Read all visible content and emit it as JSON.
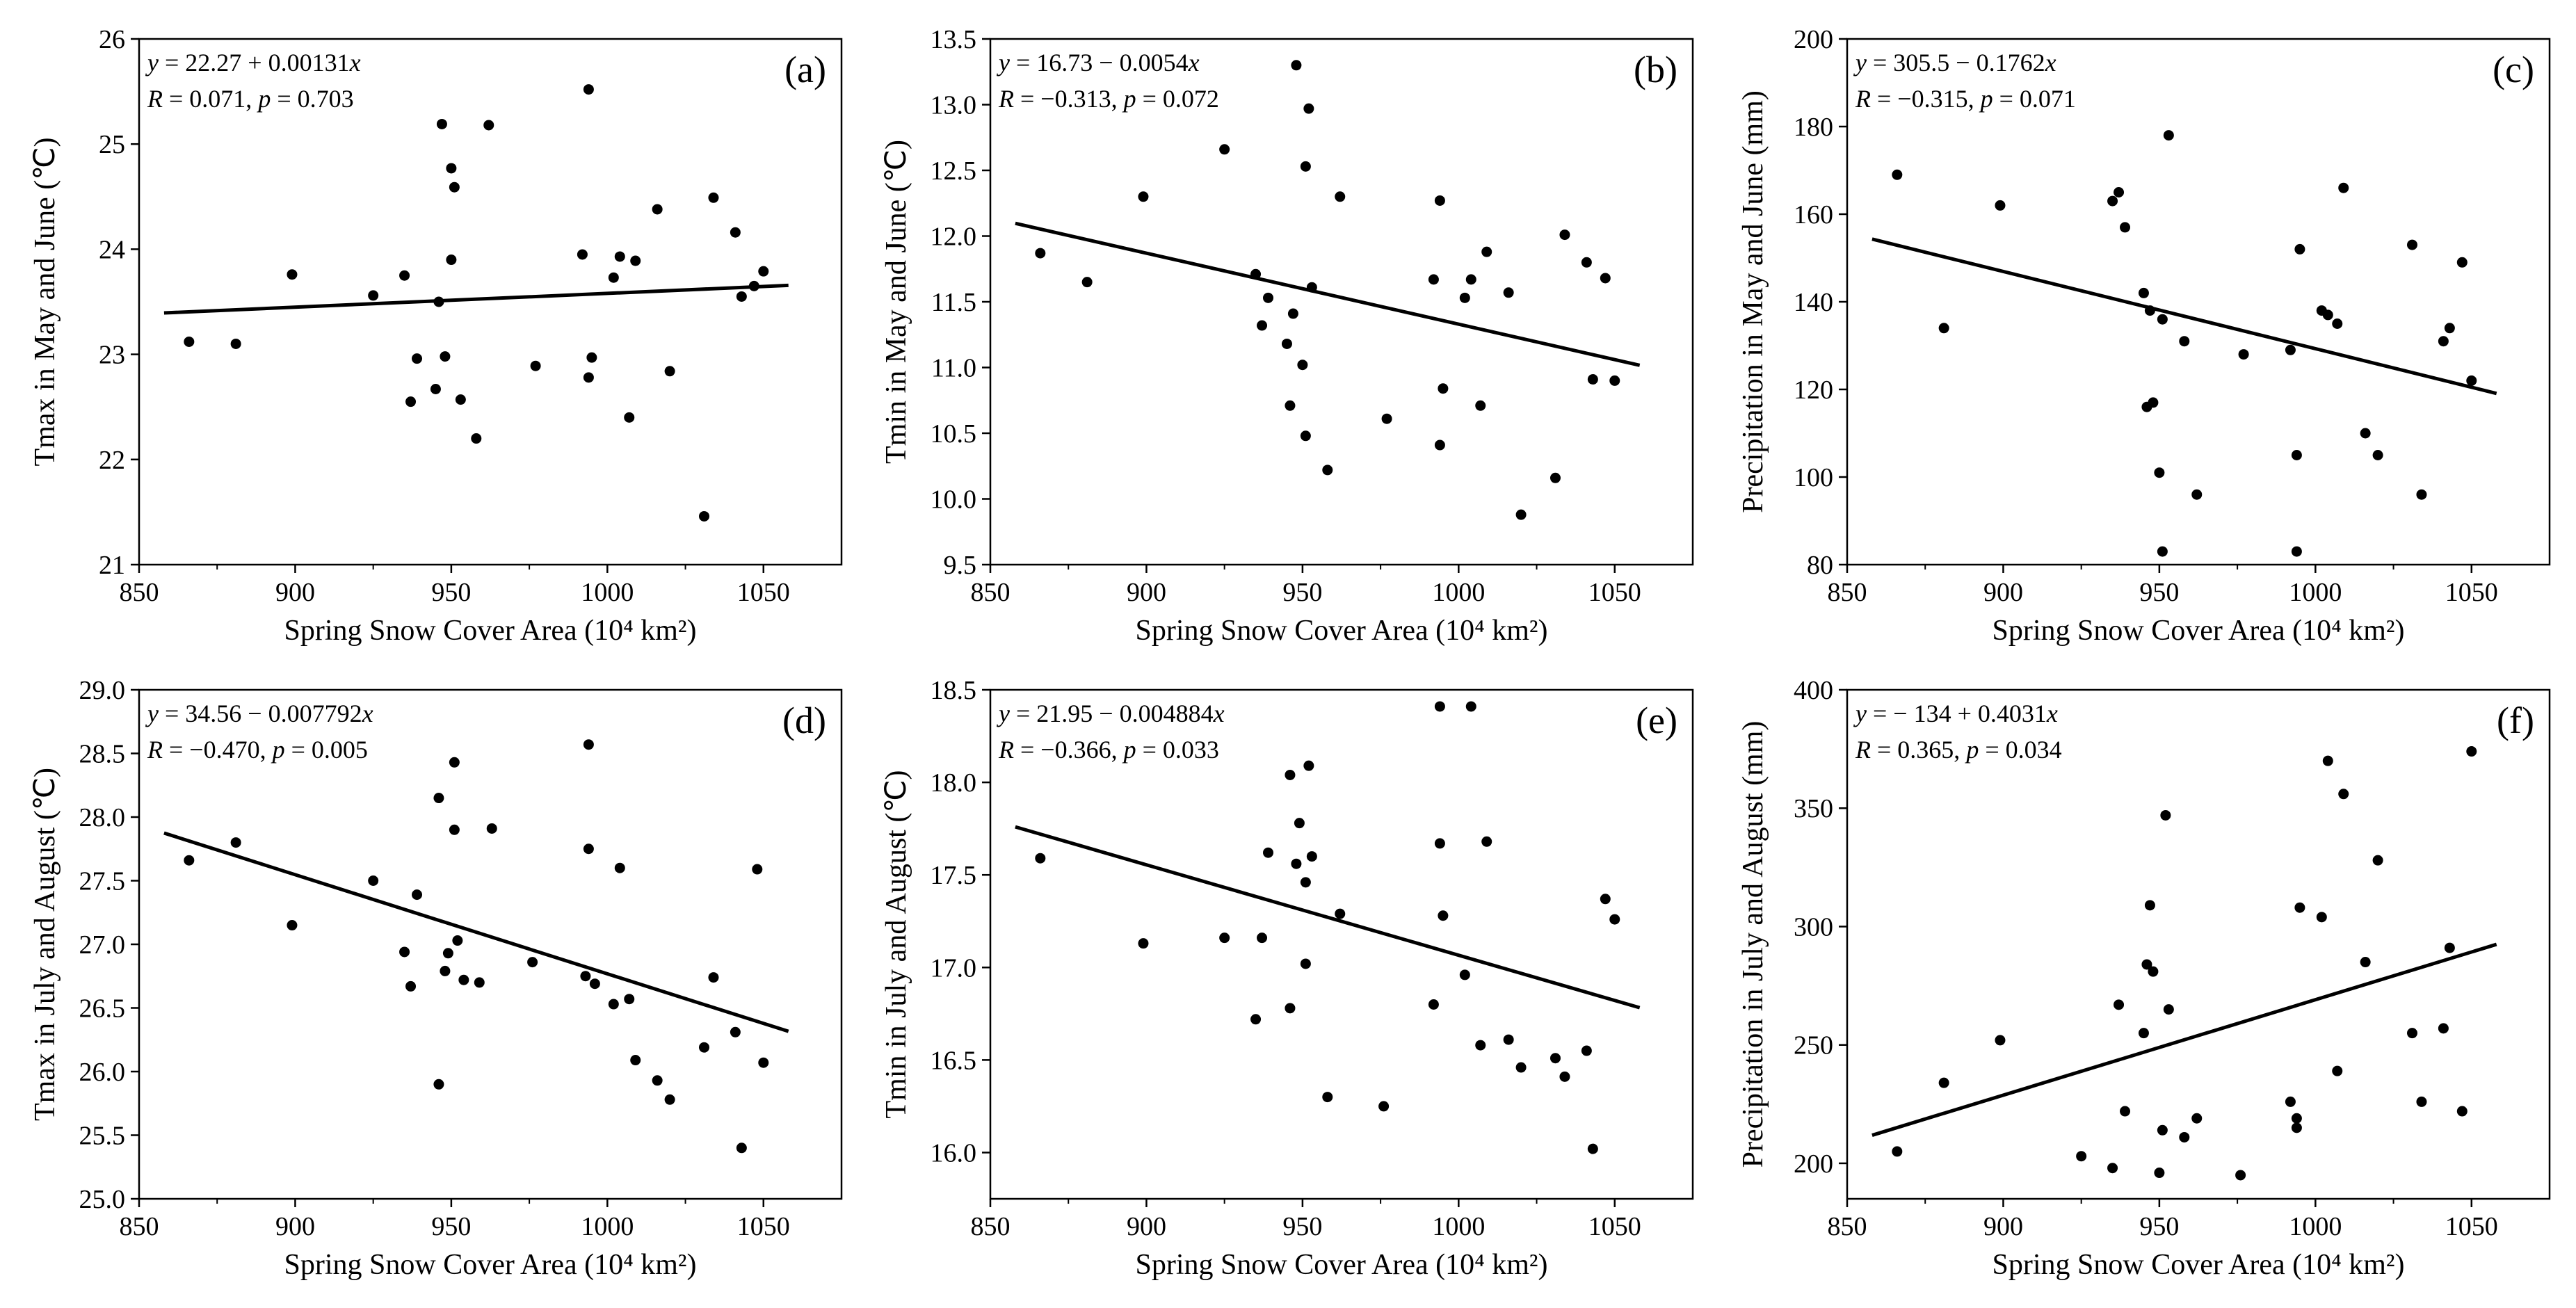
{
  "figure": {
    "colors": {
      "axis": "#000000",
      "point": "#000000",
      "line": "#000000",
      "background": "#ffffff"
    }
  },
  "chart_data": [
    {
      "type": "scatter",
      "panel_label": "(a)",
      "ylabel": "Tmax in May and June (℃)",
      "xlabel": "Spring Snow Cover Area (10⁴ km²)",
      "xlim": [
        850,
        1075
      ],
      "ylim": [
        21,
        26
      ],
      "xticks": [
        850,
        900,
        950,
        1000,
        1050
      ],
      "yticks": [
        21,
        22,
        23,
        24,
        25,
        26
      ],
      "ytick_labels": [
        "21",
        "22",
        "23",
        "24",
        "25",
        "26"
      ],
      "equation": "y = 22.27 + 0.00131x",
      "stats": "R = 0.071, p = 0.703",
      "fit": {
        "intercept": 22.27,
        "slope": 0.00131,
        "x_range": [
          858,
          1058
        ]
      },
      "points": [
        [
          866,
          23.12
        ],
        [
          881,
          23.1
        ],
        [
          899,
          23.76
        ],
        [
          925,
          23.56
        ],
        [
          935,
          23.75
        ],
        [
          937,
          22.55
        ],
        [
          939,
          22.96
        ],
        [
          945,
          22.67
        ],
        [
          946,
          23.5
        ],
        [
          947,
          25.19
        ],
        [
          948,
          22.98
        ],
        [
          950,
          24.77
        ],
        [
          950,
          23.9
        ],
        [
          951,
          24.59
        ],
        [
          953,
          22.57
        ],
        [
          958,
          22.2
        ],
        [
          962,
          25.18
        ],
        [
          977,
          22.89
        ],
        [
          992,
          23.95
        ],
        [
          994,
          25.52
        ],
        [
          994,
          22.78
        ],
        [
          995,
          22.97
        ],
        [
          1002,
          23.73
        ],
        [
          1004,
          23.93
        ],
        [
          1007,
          22.4
        ],
        [
          1009,
          23.89
        ],
        [
          1016,
          24.38
        ],
        [
          1020,
          22.84
        ],
        [
          1031,
          21.46
        ],
        [
          1034,
          24.49
        ],
        [
          1041,
          24.16
        ],
        [
          1043,
          23.55
        ],
        [
          1047,
          23.65
        ],
        [
          1050,
          23.79
        ]
      ]
    },
    {
      "type": "scatter",
      "panel_label": "(b)",
      "ylabel": "Tmin in May and June (℃)",
      "xlabel": "Spring Snow Cover Area (10⁴ km²)",
      "xlim": [
        850,
        1075
      ],
      "ylim": [
        9.5,
        13.5
      ],
      "xticks": [
        850,
        900,
        950,
        1000,
        1050
      ],
      "yticks": [
        9.5,
        10,
        10.5,
        11,
        11.5,
        12,
        12.5,
        13,
        13.5
      ],
      "ytick_labels": [
        "9.5",
        "10.0",
        "10.5",
        "11.0",
        "11.5",
        "12.0",
        "12.5",
        "13.0",
        "13.5"
      ],
      "equation": "y = 16.73 − 0.0054x",
      "stats": "R = −0.313, p = 0.072",
      "fit": {
        "intercept": 16.73,
        "slope": -0.0054,
        "x_range": [
          858,
          1058
        ]
      },
      "points": [
        [
          866,
          11.87
        ],
        [
          881,
          11.65
        ],
        [
          899,
          12.3
        ],
        [
          925,
          12.66
        ],
        [
          935,
          11.71
        ],
        [
          937,
          11.32
        ],
        [
          939,
          11.53
        ],
        [
          945,
          11.18
        ],
        [
          946,
          10.71
        ],
        [
          947,
          11.41
        ],
        [
          948,
          13.3
        ],
        [
          950,
          11.02
        ],
        [
          951,
          12.53
        ],
        [
          951,
          10.48
        ],
        [
          952,
          12.97
        ],
        [
          953,
          11.61
        ],
        [
          958,
          10.22
        ],
        [
          962,
          12.3
        ],
        [
          977,
          10.61
        ],
        [
          992,
          11.67
        ],
        [
          994,
          12.27
        ],
        [
          994,
          10.41
        ],
        [
          995,
          10.84
        ],
        [
          1002,
          11.53
        ],
        [
          1004,
          11.67
        ],
        [
          1007,
          10.71
        ],
        [
          1009,
          11.88
        ],
        [
          1016,
          11.57
        ],
        [
          1020,
          9.88
        ],
        [
          1031,
          10.16
        ],
        [
          1034,
          12.01
        ],
        [
          1041,
          11.8
        ],
        [
          1043,
          10.91
        ],
        [
          1047,
          11.68
        ],
        [
          1050,
          10.9
        ]
      ]
    },
    {
      "type": "scatter",
      "panel_label": "(c)",
      "ylabel": "Precipitation in May and June (mm)",
      "xlabel": "Spring Snow Cover Area (10⁴ km²)",
      "xlim": [
        850,
        1075
      ],
      "ylim": [
        80,
        200
      ],
      "xticks": [
        850,
        900,
        950,
        1000,
        1050
      ],
      "yticks": [
        80,
        100,
        120,
        140,
        160,
        180,
        200
      ],
      "ytick_labels": [
        "80",
        "100",
        "120",
        "140",
        "160",
        "180",
        "200"
      ],
      "equation": "y = 305.5 − 0.1762x",
      "stats": "R = −0.315, p = 0.071",
      "fit": {
        "intercept": 305.5,
        "slope": -0.1762,
        "x_range": [
          858,
          1058
        ]
      },
      "points": [
        [
          866,
          169
        ],
        [
          881,
          134
        ],
        [
          899,
          162
        ],
        [
          935,
          163
        ],
        [
          937,
          165
        ],
        [
          939,
          157
        ],
        [
          945,
          142
        ],
        [
          946,
          116
        ],
        [
          947,
          138
        ],
        [
          948,
          117
        ],
        [
          950,
          101
        ],
        [
          951,
          83
        ],
        [
          951,
          136
        ],
        [
          953,
          178
        ],
        [
          958,
          131
        ],
        [
          962,
          96
        ],
        [
          977,
          128
        ],
        [
          992,
          129
        ],
        [
          994,
          105
        ],
        [
          994,
          83
        ],
        [
          995,
          152
        ],
        [
          1002,
          138
        ],
        [
          1004,
          137
        ],
        [
          1007,
          135
        ],
        [
          1009,
          166
        ],
        [
          1016,
          110
        ],
        [
          1020,
          105
        ],
        [
          1031,
          153
        ],
        [
          1034,
          96
        ],
        [
          1041,
          131
        ],
        [
          1043,
          134
        ],
        [
          1047,
          149
        ],
        [
          1050,
          122
        ]
      ]
    },
    {
      "type": "scatter",
      "panel_label": "(d)",
      "ylabel": "Tmax in July and August (℃)",
      "xlabel": "Spring Snow Cover Area (10⁴ km²)",
      "xlim": [
        850,
        1075
      ],
      "ylim": [
        25,
        29
      ],
      "xticks": [
        850,
        900,
        950,
        1000,
        1050
      ],
      "yticks": [
        25,
        25.5,
        26,
        26.5,
        27,
        27.5,
        28,
        28.5,
        29
      ],
      "ytick_labels": [
        "25.0",
        "25.5",
        "26.0",
        "26.5",
        "27.0",
        "27.5",
        "28.0",
        "28.5",
        "29.0"
      ],
      "equation": "y = 34.56 − 0.007792x",
      "stats": "R = −0.470, p = 0.005",
      "fit": {
        "intercept": 34.56,
        "slope": -0.007792,
        "x_range": [
          858,
          1058
        ]
      },
      "points": [
        [
          866,
          27.66
        ],
        [
          881,
          27.8
        ],
        [
          899,
          27.15
        ],
        [
          925,
          27.5
        ],
        [
          935,
          26.94
        ],
        [
          937,
          26.67
        ],
        [
          939,
          27.39
        ],
        [
          946,
          28.15
        ],
        [
          946,
          25.9
        ],
        [
          948,
          26.79
        ],
        [
          949,
          26.93
        ],
        [
          951,
          28.43
        ],
        [
          951,
          27.9
        ],
        [
          952,
          27.03
        ],
        [
          954,
          26.72
        ],
        [
          959,
          26.7
        ],
        [
          963,
          27.91
        ],
        [
          976,
          26.86
        ],
        [
          993,
          26.75
        ],
        [
          994,
          28.57
        ],
        [
          994,
          27.75
        ],
        [
          996,
          26.69
        ],
        [
          1002,
          26.53
        ],
        [
          1004,
          27.6
        ],
        [
          1007,
          26.57
        ],
        [
          1009,
          26.09
        ],
        [
          1016,
          25.93
        ],
        [
          1020,
          25.78
        ],
        [
          1031,
          26.19
        ],
        [
          1034,
          26.74
        ],
        [
          1041,
          26.31
        ],
        [
          1043,
          25.4
        ],
        [
          1048,
          27.59
        ],
        [
          1050,
          26.07
        ]
      ]
    },
    {
      "type": "scatter",
      "panel_label": "(e)",
      "ylabel": "Tmin in July and August (℃)",
      "xlabel": "Spring Snow Cover Area (10⁴ km²)",
      "xlim": [
        850,
        1075
      ],
      "ylim": [
        15.75,
        18.5
      ],
      "xticks": [
        850,
        900,
        950,
        1000,
        1050
      ],
      "yticks": [
        16,
        16.5,
        17,
        17.5,
        18,
        18.5
      ],
      "ytick_labels": [
        "16.0",
        "16.5",
        "17.0",
        "17.5",
        "18.0",
        "18.5"
      ],
      "equation": "y = 21.95 − 0.004884x",
      "stats": "R = −0.366, p = 0.033",
      "fit": {
        "intercept": 21.95,
        "slope": -0.004884,
        "x_range": [
          858,
          1058
        ]
      },
      "points": [
        [
          866,
          17.59
        ],
        [
          899,
          17.13
        ],
        [
          925,
          17.16
        ],
        [
          935,
          16.72
        ],
        [
          937,
          17.16
        ],
        [
          939,
          17.62
        ],
        [
          946,
          18.04
        ],
        [
          946,
          16.78
        ],
        [
          948,
          17.56
        ],
        [
          949,
          17.78
        ],
        [
          951,
          17.46
        ],
        [
          951,
          17.02
        ],
        [
          952,
          18.09
        ],
        [
          953,
          17.6
        ],
        [
          958,
          16.3
        ],
        [
          962,
          17.29
        ],
        [
          976,
          16.25
        ],
        [
          992,
          16.8
        ],
        [
          994,
          17.67
        ],
        [
          994,
          18.41
        ],
        [
          995,
          17.28
        ],
        [
          1002,
          16.96
        ],
        [
          1004,
          18.41
        ],
        [
          1007,
          16.58
        ],
        [
          1009,
          17.68
        ],
        [
          1016,
          16.61
        ],
        [
          1020,
          16.46
        ],
        [
          1031,
          16.51
        ],
        [
          1034,
          16.41
        ],
        [
          1041,
          16.55
        ],
        [
          1043,
          16.02
        ],
        [
          1047,
          17.37
        ],
        [
          1050,
          17.26
        ]
      ]
    },
    {
      "type": "scatter",
      "panel_label": "(f)",
      "ylabel": "Precipitation in July and August (mm)",
      "xlabel": "Spring Snow Cover Area (10⁴ km²)",
      "xlim": [
        850,
        1075
      ],
      "ylim": [
        185,
        400
      ],
      "xticks": [
        850,
        900,
        950,
        1000,
        1050
      ],
      "yticks": [
        200,
        250,
        300,
        350,
        400
      ],
      "ytick_labels": [
        "200",
        "250",
        "300",
        "350",
        "400"
      ],
      "equation": "y = − 134 + 0.4031x",
      "stats": "R = 0.365, p = 0.034",
      "fit": {
        "intercept": -134,
        "slope": 0.4031,
        "x_range": [
          858,
          1058
        ]
      },
      "points": [
        [
          866,
          205
        ],
        [
          881,
          234
        ],
        [
          899,
          252
        ],
        [
          925,
          203
        ],
        [
          935,
          198
        ],
        [
          937,
          267
        ],
        [
          939,
          222
        ],
        [
          945,
          255
        ],
        [
          946,
          284
        ],
        [
          947,
          309
        ],
        [
          948,
          281
        ],
        [
          950,
          196
        ],
        [
          951,
          214
        ],
        [
          952,
          347
        ],
        [
          953,
          265
        ],
        [
          958,
          211
        ],
        [
          962,
          219
        ],
        [
          976,
          195
        ],
        [
          992,
          226
        ],
        [
          994,
          215
        ],
        [
          994,
          219
        ],
        [
          995,
          308
        ],
        [
          1002,
          304
        ],
        [
          1004,
          370
        ],
        [
          1007,
          239
        ],
        [
          1009,
          356
        ],
        [
          1016,
          285
        ],
        [
          1020,
          328
        ],
        [
          1031,
          255
        ],
        [
          1034,
          226
        ],
        [
          1041,
          257
        ],
        [
          1043,
          291
        ],
        [
          1047,
          222
        ],
        [
          1050,
          374
        ]
      ]
    }
  ]
}
